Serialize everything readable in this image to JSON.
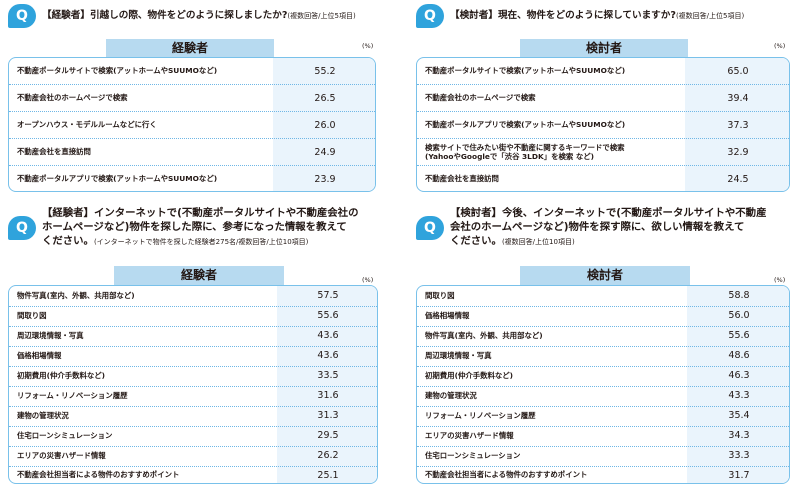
{
  "q1": {
    "badge": "Q",
    "title": "【経験者】引越しの際、物件をどのように探しましたか?",
    "note": "(複数回答/上位5項目)",
    "tab": "経験者",
    "unit": "(%)",
    "rows": [
      {
        "label": "不動産ポータルサイトで検索(アットホームやSUUMOなど)",
        "value": "55.2"
      },
      {
        "label": "不動産会社のホームページで検索",
        "value": "26.5"
      },
      {
        "label": "オープンハウス・モデルルームなどに行く",
        "value": "26.0"
      },
      {
        "label": "不動産会社を直接訪問",
        "value": "24.9"
      },
      {
        "label": "不動産ポータルアプリで検索(アットホームやSUUMOなど)",
        "value": "23.9"
      }
    ]
  },
  "q2": {
    "badge": "Q",
    "title": "【検討者】現在、物件をどのように探していますか?",
    "note": "(複数回答/上位5項目)",
    "tab": "検討者",
    "unit": "(%)",
    "rows": [
      {
        "label": "不動産ポータルサイトで検索(アットホームやSUUMOなど)",
        "value": "65.0"
      },
      {
        "label": "不動産会社のホームページで検索",
        "value": "39.4"
      },
      {
        "label": "不動産ポータルアプリで検索(アットホームやSUUMOなど)",
        "value": "37.3"
      },
      {
        "label": "検索サイトで住みたい街や不動産に関するキーワードで検索",
        "label2": "(YahooやGoogleで「渋谷 3LDK」を検索 など)",
        "value": "32.9"
      },
      {
        "label": "不動産会社を直接訪問",
        "value": "24.5"
      }
    ]
  },
  "q3": {
    "badge": "Q",
    "title_line1": "【経験者】インターネットで(不動産ポータルサイトや不動産会社の",
    "title_line2": "ホームページなど)物件を探した際に、参考になった情報を教えて",
    "title_line3": "ください。",
    "note": "(インターネットで物件を探した経験者275名/複数回答/上位10項目)",
    "tab": "経験者",
    "unit": "(%)",
    "rows": [
      {
        "label": "物件写真(室内、外観、共用部など)",
        "value": "57.5"
      },
      {
        "label": "間取り図",
        "value": "55.6"
      },
      {
        "label": "周辺環境情報・写真",
        "value": "43.6"
      },
      {
        "label": "価格相場情報",
        "value": "43.6"
      },
      {
        "label": "初期費用(仲介手数料など)",
        "value": "33.5"
      },
      {
        "label": "リフォーム・リノベーション履歴",
        "value": "31.6"
      },
      {
        "label": "建物の管理状況",
        "value": "31.3"
      },
      {
        "label": "住宅ローンシミュレーション",
        "value": "29.5"
      },
      {
        "label": "エリアの災害ハザード情報",
        "value": "26.2"
      },
      {
        "label": "不動産会社担当者による物件のおすすめポイント",
        "value": "25.1"
      }
    ]
  },
  "q4": {
    "badge": "Q",
    "title_line1": "【検討者】今後、インターネットで(不動産ポータルサイトや不動産",
    "title_line2": "会社のホームページなど)物件を探す際に、欲しい情報を教えて",
    "title_line3": "ください。",
    "note": "(複数回答/上位10項目)",
    "tab": "検討者",
    "unit": "(%)",
    "rows": [
      {
        "label": "間取り図",
        "value": "58.8"
      },
      {
        "label": "価格相場情報",
        "value": "56.0"
      },
      {
        "label": "物件写真(室内、外観、共用部など)",
        "value": "55.6"
      },
      {
        "label": "周辺環境情報・写真",
        "value": "48.6"
      },
      {
        "label": "初期費用(仲介手数料など)",
        "value": "46.3"
      },
      {
        "label": "建物の管理状況",
        "value": "43.3"
      },
      {
        "label": "リフォーム・リノベーション履歴",
        "value": "35.4"
      },
      {
        "label": "エリアの災害ハザード情報",
        "value": "34.3"
      },
      {
        "label": "住宅ローンシミュレーション",
        "value": "33.3"
      },
      {
        "label": "不動産会社担当者による物件のおすすめポイント",
        "value": "31.7"
      }
    ]
  }
}
